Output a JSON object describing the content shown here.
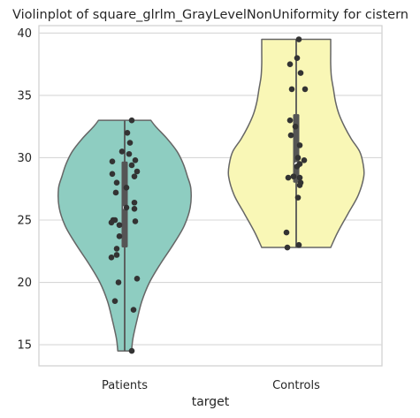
{
  "chart_data": {
    "type": "violin",
    "title": "Violinplot of square_glrlm_GrayLevelNonUniformity for cistern",
    "xlabel": "target",
    "ylabel": "",
    "categories": [
      "Patients",
      "Controls"
    ],
    "ylim": [
      13.3,
      40.6
    ],
    "yticks": [
      15,
      20,
      25,
      30,
      35,
      40
    ],
    "grid": true,
    "colors": {
      "Patients": "#8ecdc1",
      "Controls": "#f9f7b6"
    },
    "series": [
      {
        "category": "Patients",
        "color": "#8ecdc1",
        "range": [
          14.5,
          33.0
        ],
        "quartiles": [
          22.8,
          26.0,
          29.7
        ],
        "density_profile": [
          [
            14.5,
            0.1
          ],
          [
            15.5,
            0.12
          ],
          [
            17.0,
            0.18
          ],
          [
            18.5,
            0.25
          ],
          [
            20.0,
            0.36
          ],
          [
            21.5,
            0.52
          ],
          [
            23.0,
            0.7
          ],
          [
            24.5,
            0.86
          ],
          [
            26.0,
            0.95
          ],
          [
            27.5,
            0.96
          ],
          [
            28.5,
            0.91
          ],
          [
            29.5,
            0.85
          ],
          [
            30.5,
            0.76
          ],
          [
            31.5,
            0.62
          ],
          [
            32.5,
            0.45
          ],
          [
            33.0,
            0.38
          ]
        ],
        "points": [
          [
            0.08,
            33.0
          ],
          [
            0.03,
            32.0
          ],
          [
            0.06,
            31.2
          ],
          [
            -0.03,
            30.5
          ],
          [
            0.05,
            30.3
          ],
          [
            0.12,
            29.8
          ],
          [
            -0.14,
            29.7
          ],
          [
            0.08,
            29.4
          ],
          [
            0.14,
            28.9
          ],
          [
            -0.14,
            28.7
          ],
          [
            0.11,
            28.5
          ],
          [
            -0.09,
            28.0
          ],
          [
            0.02,
            27.6
          ],
          [
            -0.1,
            27.2
          ],
          [
            0.11,
            26.4
          ],
          [
            0.02,
            26.0
          ],
          [
            0.11,
            25.9
          ],
          [
            -0.13,
            25.0
          ],
          [
            -0.11,
            25.0
          ],
          [
            0.12,
            24.9
          ],
          [
            -0.15,
            24.8
          ],
          [
            -0.06,
            24.6
          ],
          [
            -0.06,
            23.7
          ],
          [
            -0.09,
            22.7
          ],
          [
            -0.09,
            22.2
          ],
          [
            -0.15,
            22.0
          ],
          [
            -0.07,
            20.0
          ],
          [
            0.14,
            20.3
          ],
          [
            -0.11,
            18.5
          ],
          [
            0.1,
            17.8
          ],
          [
            0.08,
            14.5
          ]
        ]
      },
      {
        "category": "Controls",
        "color": "#f9f7b6",
        "range": [
          22.8,
          39.5
        ],
        "quartiles": [
          28.0,
          29.5,
          33.5
        ],
        "density_profile": [
          [
            22.8,
            0.5
          ],
          [
            24.0,
            0.6
          ],
          [
            25.5,
            0.75
          ],
          [
            27.0,
            0.9
          ],
          [
            28.5,
            0.98
          ],
          [
            29.5,
            0.97
          ],
          [
            30.5,
            0.92
          ],
          [
            31.5,
            0.8
          ],
          [
            32.5,
            0.7
          ],
          [
            33.5,
            0.62
          ],
          [
            34.5,
            0.57
          ],
          [
            35.5,
            0.54
          ],
          [
            36.5,
            0.51
          ],
          [
            37.5,
            0.5
          ],
          [
            38.5,
            0.5
          ],
          [
            39.5,
            0.5
          ]
        ],
        "points": [
          [
            0.03,
            39.5
          ],
          [
            0.01,
            38.0
          ],
          [
            -0.07,
            37.5
          ],
          [
            0.05,
            36.8
          ],
          [
            -0.05,
            35.5
          ],
          [
            0.1,
            35.5
          ],
          [
            -0.07,
            33.0
          ],
          [
            -0.01,
            32.5
          ],
          [
            -0.06,
            31.8
          ],
          [
            0.04,
            31.0
          ],
          [
            0.02,
            30.0
          ],
          [
            0.09,
            29.8
          ],
          [
            0.04,
            29.5
          ],
          [
            0.01,
            29.3
          ],
          [
            -0.03,
            28.5
          ],
          [
            -0.09,
            28.4
          ],
          [
            0.04,
            28.4
          ],
          [
            0.05,
            28.0
          ],
          [
            0.04,
            27.8
          ],
          [
            0.02,
            26.8
          ],
          [
            -0.11,
            24.0
          ],
          [
            0.03,
            23.0
          ],
          [
            -0.1,
            22.8
          ]
        ]
      }
    ]
  }
}
